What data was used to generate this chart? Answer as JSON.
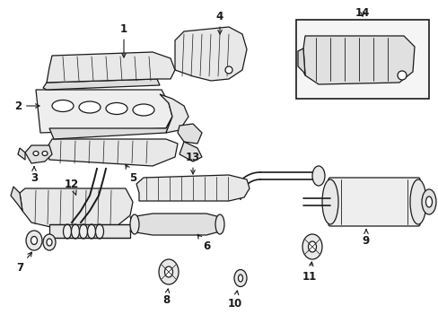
{
  "bg_color": "#ffffff",
  "line_color": "#1a1a1a",
  "fig_width": 4.89,
  "fig_height": 3.6,
  "dpi": 100,
  "font_size": 8.5,
  "lw": 0.9
}
